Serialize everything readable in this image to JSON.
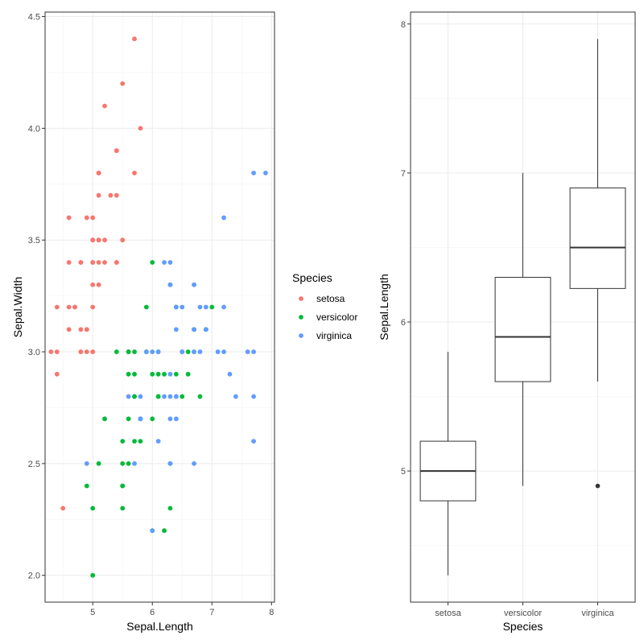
{
  "chart_data": [
    {
      "type": "scatter",
      "xlabel": "Sepal.Length",
      "ylabel": "Sepal.Width",
      "xlim": [
        4.2,
        8.05
      ],
      "ylim": [
        1.88,
        4.52
      ],
      "x_ticks": [
        5,
        6,
        7,
        8
      ],
      "y_ticks": [
        2.0,
        2.5,
        3.0,
        3.5,
        4.0,
        4.5
      ],
      "y_tick_labels": [
        "2.0",
        "2.5",
        "3.0",
        "3.5",
        "4.0",
        "4.5"
      ],
      "grid": true,
      "legend": {
        "title": "Species",
        "position": "right",
        "entries": [
          {
            "label": "setosa",
            "color": "#F8766D"
          },
          {
            "label": "versicolor",
            "color": "#00BA38"
          },
          {
            "label": "virginica",
            "color": "#619CFF"
          }
        ]
      },
      "series": [
        {
          "name": "setosa",
          "color": "#F8766D",
          "points": [
            [
              5.1,
              3.5
            ],
            [
              4.9,
              3.0
            ],
            [
              4.7,
              3.2
            ],
            [
              4.6,
              3.1
            ],
            [
              5.0,
              3.6
            ],
            [
              5.4,
              3.9
            ],
            [
              4.6,
              3.4
            ],
            [
              5.0,
              3.4
            ],
            [
              4.4,
              2.9
            ],
            [
              4.9,
              3.1
            ],
            [
              5.4,
              3.7
            ],
            [
              4.8,
              3.4
            ],
            [
              4.8,
              3.0
            ],
            [
              4.3,
              3.0
            ],
            [
              5.8,
              4.0
            ],
            [
              5.7,
              4.4
            ],
            [
              5.4,
              3.9
            ],
            [
              5.1,
              3.5
            ],
            [
              5.7,
              3.8
            ],
            [
              5.1,
              3.8
            ],
            [
              5.4,
              3.4
            ],
            [
              5.1,
              3.7
            ],
            [
              4.6,
              3.6
            ],
            [
              5.1,
              3.3
            ],
            [
              4.8,
              3.4
            ],
            [
              5.0,
              3.0
            ],
            [
              5.0,
              3.4
            ],
            [
              5.2,
              3.5
            ],
            [
              5.2,
              3.4
            ],
            [
              4.7,
              3.2
            ],
            [
              4.8,
              3.1
            ],
            [
              5.4,
              3.4
            ],
            [
              5.2,
              4.1
            ],
            [
              5.5,
              4.2
            ],
            [
              4.9,
              3.1
            ],
            [
              5.0,
              3.2
            ],
            [
              5.5,
              3.5
            ],
            [
              4.9,
              3.6
            ],
            [
              4.4,
              3.0
            ],
            [
              5.1,
              3.4
            ],
            [
              5.0,
              3.5
            ],
            [
              4.5,
              2.3
            ],
            [
              4.4,
              3.2
            ],
            [
              5.0,
              3.5
            ],
            [
              5.1,
              3.8
            ],
            [
              4.8,
              3.0
            ],
            [
              5.1,
              3.8
            ],
            [
              4.6,
              3.2
            ],
            [
              5.3,
              3.7
            ],
            [
              5.0,
              3.3
            ]
          ]
        },
        {
          "name": "versicolor",
          "color": "#00BA38",
          "points": [
            [
              7.0,
              3.2
            ],
            [
              6.4,
              3.2
            ],
            [
              6.9,
              3.1
            ],
            [
              5.5,
              2.3
            ],
            [
              6.5,
              2.8
            ],
            [
              5.7,
              2.8
            ],
            [
              6.3,
              3.3
            ],
            [
              4.9,
              2.4
            ],
            [
              6.6,
              2.9
            ],
            [
              5.2,
              2.7
            ],
            [
              5.0,
              2.0
            ],
            [
              5.9,
              3.0
            ],
            [
              6.0,
              2.2
            ],
            [
              6.1,
              2.9
            ],
            [
              5.6,
              2.9
            ],
            [
              6.7,
              3.1
            ],
            [
              5.6,
              3.0
            ],
            [
              5.8,
              2.7
            ],
            [
              6.2,
              2.2
            ],
            [
              5.6,
              2.5
            ],
            [
              5.9,
              3.2
            ],
            [
              6.1,
              2.8
            ],
            [
              6.3,
              2.5
            ],
            [
              6.1,
              2.8
            ],
            [
              6.4,
              2.9
            ],
            [
              6.6,
              3.0
            ],
            [
              6.8,
              2.8
            ],
            [
              6.7,
              3.0
            ],
            [
              6.0,
              2.9
            ],
            [
              5.7,
              2.6
            ],
            [
              5.5,
              2.4
            ],
            [
              5.5,
              2.4
            ],
            [
              5.8,
              2.7
            ],
            [
              6.0,
              2.7
            ],
            [
              5.4,
              3.0
            ],
            [
              6.0,
              3.4
            ],
            [
              6.7,
              3.1
            ],
            [
              6.3,
              2.3
            ],
            [
              5.6,
              3.0
            ],
            [
              5.5,
              2.5
            ],
            [
              5.5,
              2.6
            ],
            [
              6.1,
              3.0
            ],
            [
              5.8,
              2.6
            ],
            [
              5.0,
              2.3
            ],
            [
              5.6,
              2.7
            ],
            [
              5.7,
              3.0
            ],
            [
              5.7,
              2.9
            ],
            [
              6.2,
              2.9
            ],
            [
              5.1,
              2.5
            ],
            [
              5.7,
              2.8
            ]
          ]
        },
        {
          "name": "virginica",
          "color": "#619CFF",
          "points": [
            [
              6.3,
              3.3
            ],
            [
              5.8,
              2.7
            ],
            [
              7.1,
              3.0
            ],
            [
              6.3,
              2.9
            ],
            [
              6.5,
              3.0
            ],
            [
              7.6,
              3.0
            ],
            [
              4.9,
              2.5
            ],
            [
              7.3,
              2.9
            ],
            [
              6.7,
              2.5
            ],
            [
              7.2,
              3.6
            ],
            [
              6.5,
              3.2
            ],
            [
              6.4,
              2.7
            ],
            [
              6.8,
              3.0
            ],
            [
              5.7,
              2.5
            ],
            [
              5.8,
              2.8
            ],
            [
              6.4,
              3.2
            ],
            [
              6.5,
              3.0
            ],
            [
              7.7,
              3.8
            ],
            [
              7.7,
              2.6
            ],
            [
              6.0,
              2.2
            ],
            [
              6.9,
              3.2
            ],
            [
              5.6,
              2.8
            ],
            [
              7.7,
              2.8
            ],
            [
              6.3,
              2.7
            ],
            [
              6.7,
              3.3
            ],
            [
              7.2,
              3.2
            ],
            [
              6.2,
              2.8
            ],
            [
              6.1,
              3.0
            ],
            [
              6.4,
              2.8
            ],
            [
              7.2,
              3.0
            ],
            [
              7.4,
              2.8
            ],
            [
              7.9,
              3.8
            ],
            [
              6.4,
              2.8
            ],
            [
              6.3,
              2.8
            ],
            [
              6.1,
              2.6
            ],
            [
              7.7,
              3.0
            ],
            [
              6.3,
              3.4
            ],
            [
              6.4,
              3.1
            ],
            [
              6.0,
              3.0
            ],
            [
              6.9,
              3.1
            ],
            [
              6.7,
              3.1
            ],
            [
              6.9,
              3.1
            ],
            [
              5.8,
              2.7
            ],
            [
              6.8,
              3.2
            ],
            [
              6.7,
              3.3
            ],
            [
              6.7,
              3.0
            ],
            [
              6.3,
              2.5
            ],
            [
              6.5,
              3.0
            ],
            [
              6.2,
              3.4
            ],
            [
              5.9,
              3.0
            ]
          ]
        }
      ]
    },
    {
      "type": "boxplot",
      "xlabel": "Species",
      "ylabel": "Sepal.Length",
      "ylim": [
        4.12,
        8.08
      ],
      "y_ticks": [
        5,
        6,
        7,
        8
      ],
      "categories": [
        "setosa",
        "versicolor",
        "virginica"
      ],
      "grid": true,
      "boxes": [
        {
          "category": "setosa",
          "min": 4.3,
          "q1": 4.8,
          "median": 5.0,
          "q3": 5.2,
          "max": 5.8,
          "outliers": []
        },
        {
          "category": "versicolor",
          "min": 4.9,
          "q1": 5.6,
          "median": 5.9,
          "q3": 6.3,
          "max": 7.0,
          "outliers": []
        },
        {
          "category": "virginica",
          "min": 5.6,
          "q1": 6.225,
          "median": 6.5,
          "q3": 6.9,
          "max": 7.9,
          "outliers": [
            4.9
          ]
        }
      ]
    }
  ]
}
